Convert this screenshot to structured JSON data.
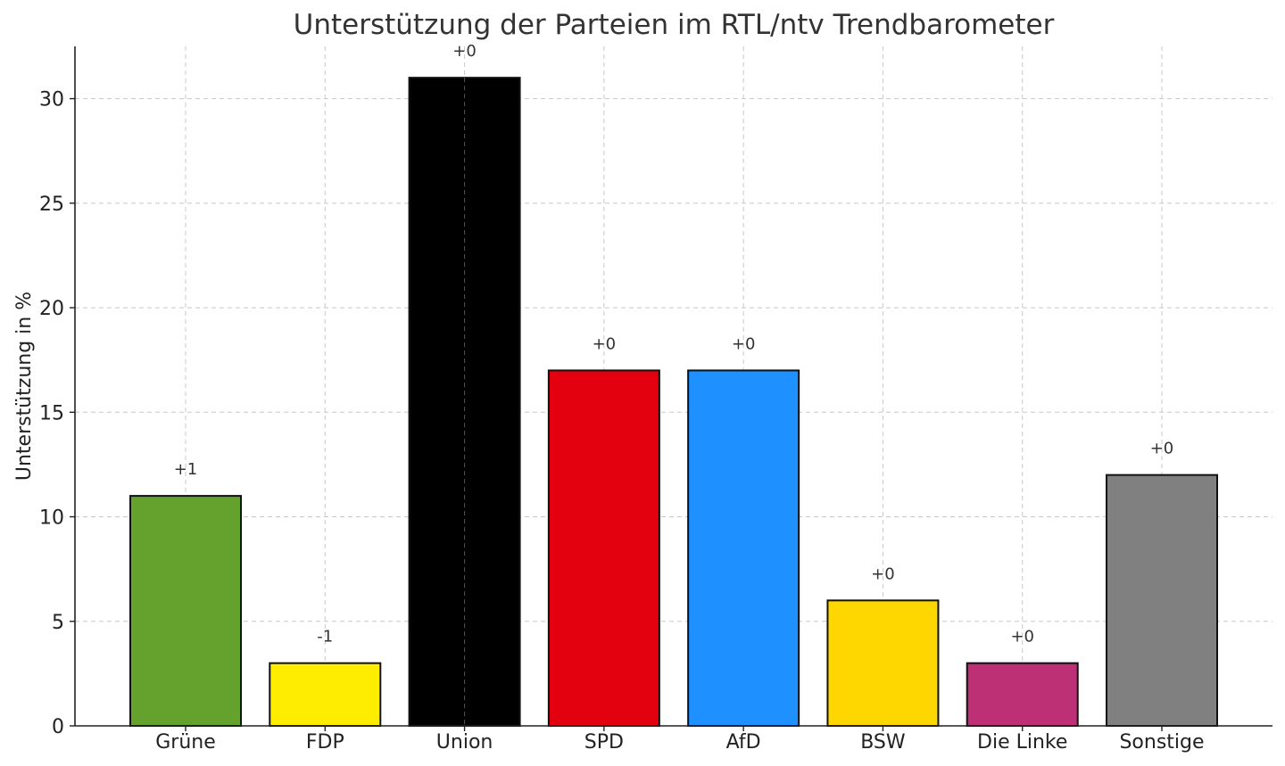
{
  "chart_data": {
    "type": "bar",
    "title": "Unterstützung der Parteien im RTL/ntv Trendbarometer",
    "xlabel": "",
    "ylabel": "Unterstützung in %",
    "categories": [
      "Grüne",
      "FDP",
      "Union",
      "SPD",
      "AfD",
      "BSW",
      "Die Linke",
      "Sonstige"
    ],
    "values": [
      11,
      3,
      31,
      17,
      17,
      6,
      3,
      12
    ],
    "changes": [
      "+1",
      "-1",
      "+0",
      "+0",
      "+0",
      "+0",
      "+0",
      "+0"
    ],
    "colors": [
      "#64A12D",
      "#FFED00",
      "#000000",
      "#E3000F",
      "#1E90FF",
      "#FFD700",
      "#BE3075",
      "#808080"
    ],
    "ylim": [
      0,
      32.5
    ],
    "yticks": [
      0,
      5,
      10,
      15,
      20,
      25,
      30
    ],
    "grid": true,
    "legend": "none"
  }
}
